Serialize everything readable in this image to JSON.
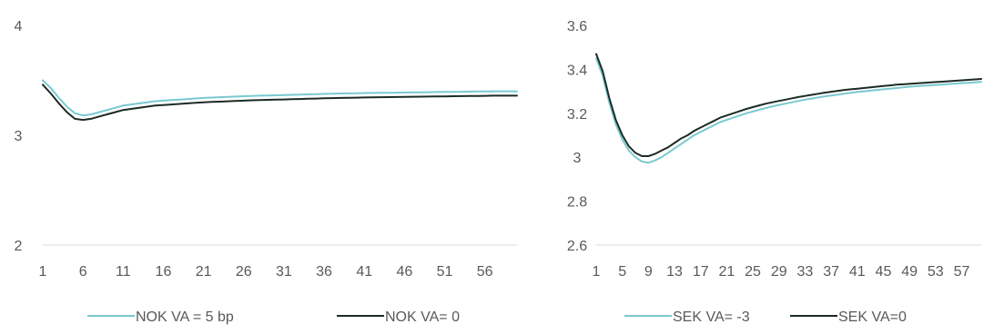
{
  "chart_data": [
    {
      "type": "line",
      "title": "",
      "xlabel": "",
      "ylabel": "",
      "ylim": [
        2,
        4
      ],
      "yticks": [
        "2",
        "3",
        "4"
      ],
      "x": [
        1,
        2,
        3,
        4,
        5,
        6,
        7,
        8,
        9,
        10,
        11,
        12,
        13,
        14,
        15,
        16,
        17,
        18,
        19,
        20,
        21,
        22,
        23,
        24,
        25,
        26,
        27,
        28,
        29,
        30,
        31,
        32,
        33,
        34,
        35,
        36,
        37,
        38,
        39,
        40,
        41,
        42,
        43,
        44,
        45,
        46,
        47,
        48,
        49,
        50,
        51,
        52,
        53,
        54,
        55,
        56,
        57,
        58,
        59,
        60
      ],
      "xtick_labels": [
        "1",
        "6",
        "11",
        "16",
        "21",
        "26",
        "31",
        "36",
        "41",
        "46",
        "51",
        "56"
      ],
      "grid": "horizontal",
      "legend_position": "bottom",
      "colors": [
        "#79c9d0",
        "#1c2b24"
      ],
      "series": [
        {
          "name": "NOK VA = 5 bp",
          "values": [
            3.5,
            3.43,
            3.34,
            3.26,
            3.2,
            3.18,
            3.19,
            3.21,
            3.23,
            3.25,
            3.27,
            3.28,
            3.29,
            3.3,
            3.31,
            3.315,
            3.32,
            3.325,
            3.33,
            3.335,
            3.34,
            3.343,
            3.346,
            3.349,
            3.352,
            3.355,
            3.358,
            3.36,
            3.362,
            3.364,
            3.366,
            3.368,
            3.37,
            3.372,
            3.374,
            3.376,
            3.378,
            3.38,
            3.381,
            3.382,
            3.384,
            3.385,
            3.386,
            3.387,
            3.388,
            3.389,
            3.39,
            3.391,
            3.392,
            3.393,
            3.394,
            3.395,
            3.396,
            3.397,
            3.398,
            3.399,
            3.4,
            3.4,
            3.4,
            3.4
          ]
        },
        {
          "name": "NOK VA= 0",
          "values": [
            3.46,
            3.38,
            3.29,
            3.21,
            3.15,
            3.14,
            3.15,
            3.17,
            3.19,
            3.21,
            3.23,
            3.24,
            3.25,
            3.26,
            3.27,
            3.275,
            3.28,
            3.285,
            3.29,
            3.295,
            3.3,
            3.303,
            3.306,
            3.309,
            3.312,
            3.315,
            3.318,
            3.32,
            3.322,
            3.324,
            3.326,
            3.328,
            3.33,
            3.332,
            3.334,
            3.336,
            3.338,
            3.34,
            3.341,
            3.342,
            3.344,
            3.345,
            3.346,
            3.347,
            3.348,
            3.349,
            3.35,
            3.351,
            3.352,
            3.353,
            3.354,
            3.355,
            3.356,
            3.357,
            3.358,
            3.359,
            3.36,
            3.36,
            3.36,
            3.36
          ]
        }
      ]
    },
    {
      "type": "line",
      "title": "",
      "xlabel": "",
      "ylabel": "",
      "ylim": [
        2.6,
        3.6
      ],
      "yticks": [
        "2.6",
        "2.8",
        "3",
        "3.2",
        "3.4",
        "3.6"
      ],
      "x": [
        1,
        2,
        3,
        4,
        5,
        6,
        7,
        8,
        9,
        10,
        11,
        12,
        13,
        14,
        15,
        16,
        17,
        18,
        19,
        20,
        21,
        22,
        23,
        24,
        25,
        26,
        27,
        28,
        29,
        30,
        31,
        32,
        33,
        34,
        35,
        36,
        37,
        38,
        39,
        40,
        41,
        42,
        43,
        44,
        45,
        46,
        47,
        48,
        49,
        50,
        51,
        52,
        53,
        54,
        55,
        56,
        57,
        58,
        59,
        60
      ],
      "xtick_labels": [
        "1",
        "5",
        "9",
        "13",
        "17",
        "21",
        "25",
        "29",
        "33",
        "37",
        "41",
        "45",
        "49",
        "53",
        "57"
      ],
      "grid": "horizontal",
      "legend_position": "bottom",
      "colors": [
        "#79c9d0",
        "#1c2b24"
      ],
      "series": [
        {
          "name": "SEK VA= -3",
          "values": [
            3.45,
            3.37,
            3.25,
            3.15,
            3.08,
            3.03,
            3.0,
            2.98,
            2.975,
            2.985,
            3.0,
            3.02,
            3.04,
            3.06,
            3.08,
            3.1,
            3.115,
            3.13,
            3.145,
            3.16,
            3.17,
            3.18,
            3.19,
            3.2,
            3.208,
            3.216,
            3.224,
            3.232,
            3.238,
            3.244,
            3.25,
            3.256,
            3.262,
            3.267,
            3.272,
            3.277,
            3.281,
            3.285,
            3.289,
            3.293,
            3.297,
            3.3,
            3.303,
            3.306,
            3.309,
            3.312,
            3.315,
            3.318,
            3.321,
            3.323,
            3.325,
            3.327,
            3.329,
            3.331,
            3.333,
            3.335,
            3.337,
            3.339,
            3.341,
            3.343
          ]
        },
        {
          "name": "SEK VA=0",
          "values": [
            3.47,
            3.39,
            3.27,
            3.17,
            3.1,
            3.05,
            3.02,
            3.005,
            3.005,
            3.015,
            3.03,
            3.045,
            3.065,
            3.085,
            3.1,
            3.12,
            3.135,
            3.15,
            3.165,
            3.18,
            3.19,
            3.2,
            3.21,
            3.22,
            3.228,
            3.236,
            3.244,
            3.25,
            3.256,
            3.262,
            3.268,
            3.274,
            3.279,
            3.284,
            3.289,
            3.294,
            3.298,
            3.302,
            3.306,
            3.309,
            3.312,
            3.315,
            3.318,
            3.321,
            3.324,
            3.327,
            3.33,
            3.332,
            3.334,
            3.336,
            3.338,
            3.34,
            3.342,
            3.344,
            3.346,
            3.348,
            3.35,
            3.352,
            3.354,
            3.356
          ]
        }
      ]
    }
  ]
}
